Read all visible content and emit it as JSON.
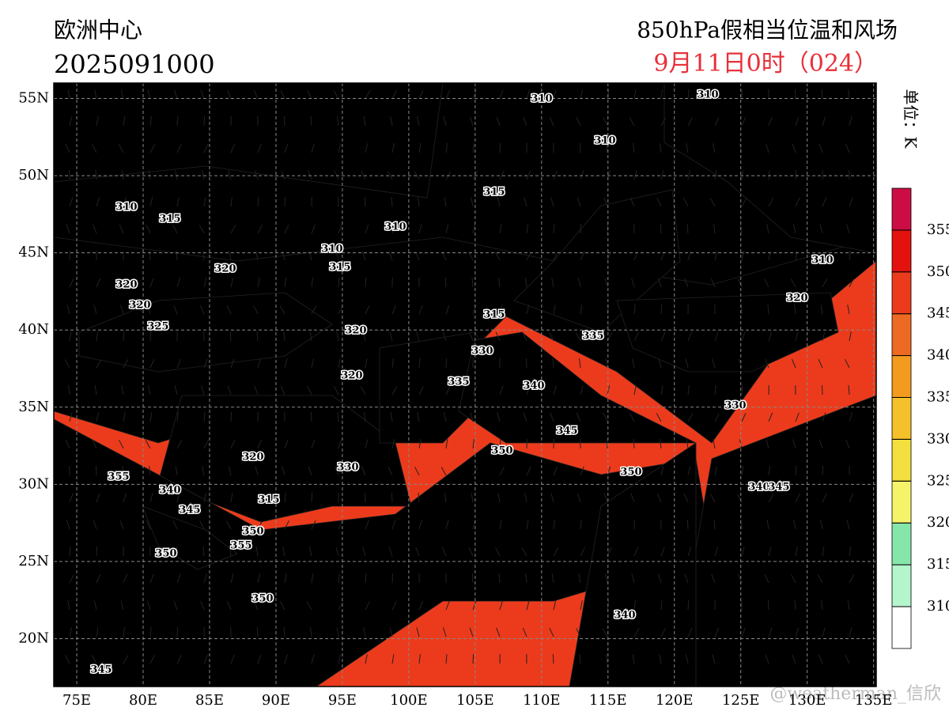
{
  "header": {
    "source": "欧洲中心",
    "init_time": "2025091000",
    "product": "850hPa假相当位温和风场",
    "valid_time": "9月11日0时（024）"
  },
  "map": {
    "lonlim": [
      73.27,
      135.2
    ],
    "latlim": [
      16.9,
      56
    ],
    "lonticks": [
      {
        "value": 75,
        "label": "75E"
      },
      {
        "value": 80,
        "label": "80E"
      },
      {
        "value": 85,
        "label": "85E"
      },
      {
        "value": 90,
        "label": "90E"
      },
      {
        "value": 95,
        "label": "95E"
      },
      {
        "value": 100,
        "label": "100E"
      },
      {
        "value": 105,
        "label": "105E"
      },
      {
        "value": 110,
        "label": "110E"
      },
      {
        "value": 115,
        "label": "115E"
      },
      {
        "value": 120,
        "label": "120E"
      },
      {
        "value": 125,
        "label": "125E"
      },
      {
        "value": 130,
        "label": "130E"
      },
      {
        "value": 135,
        "label": "135E"
      }
    ],
    "latticks": [
      {
        "value": 20,
        "label": "20N"
      },
      {
        "value": 25,
        "label": "25N"
      },
      {
        "value": 30,
        "label": "30N"
      },
      {
        "value": 35,
        "label": "35N"
      },
      {
        "value": 40,
        "label": "40N"
      },
      {
        "value": 45,
        "label": "45N"
      },
      {
        "value": 50,
        "label": "50N"
      },
      {
        "value": 55,
        "label": "55N"
      }
    ],
    "grid": true,
    "contour_labels": [
      310,
      310,
      315,
      310,
      310,
      315,
      310,
      320,
      320,
      325,
      315,
      320,
      320,
      320,
      335,
      330,
      315,
      340,
      345,
      350,
      350,
      355,
      340,
      345,
      350,
      355,
      350,
      330,
      330,
      315,
      320,
      340,
      345,
      340,
      350,
      345,
      310,
      310,
      320,
      335
    ],
    "watermark": "@weatherman_信欣"
  },
  "colorbar": {
    "unit": "单位：K",
    "levels": [
      310,
      315,
      320,
      325,
      330,
      335,
      340,
      345,
      350,
      355
    ],
    "colors": [
      "#ffffff",
      "#b4f5cc",
      "#86e6aa",
      "#f5f36a",
      "#f3df3d",
      "#f5c12a",
      "#f39b1f",
      "#ee6a22",
      "#ec3b1c",
      "#e4120f",
      "#cc0d45"
    ]
  }
}
